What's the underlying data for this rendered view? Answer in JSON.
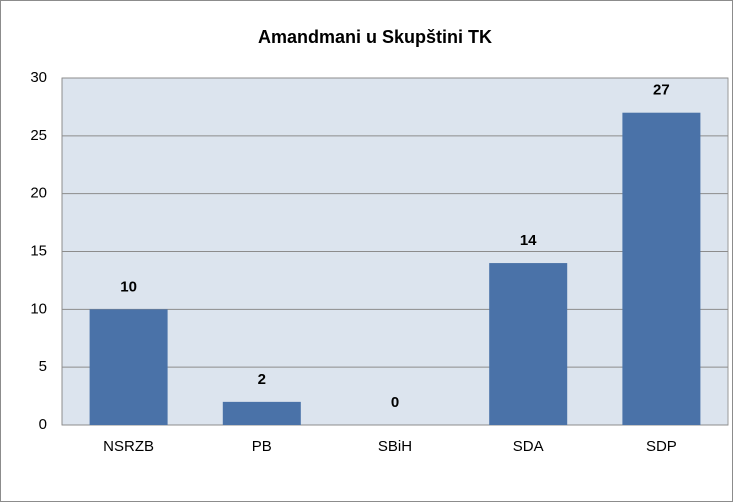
{
  "chart_data": {
    "type": "bar",
    "title": "Amandmani u Skupštini TK",
    "categories": [
      "NSRZB",
      "PB",
      "SBiH",
      "SDA",
      "SDP"
    ],
    "values": [
      10,
      2,
      0,
      14,
      27
    ],
    "color": "#4a72a8",
    "ylim": [
      0,
      30
    ],
    "yticks": [
      0,
      5,
      10,
      15,
      20,
      25,
      30
    ],
    "grid": true
  }
}
